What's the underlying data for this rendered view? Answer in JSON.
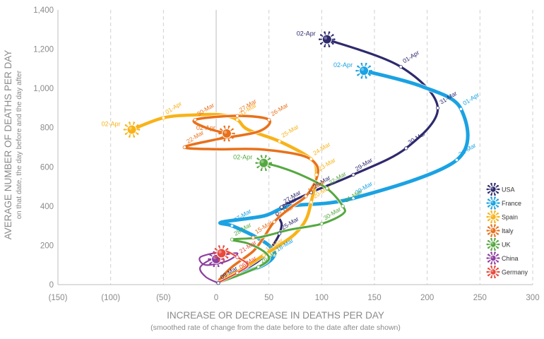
{
  "chart_data": {
    "type": "line",
    "xlabel": "INCREASE OR DECREASE IN DEATHS PER DAY",
    "xlabel_sub": "(smoothed rate of change from the date before to the date after date shown)",
    "ylabel": "AVERAGE NUMBER OF DEATHS PER DAY",
    "ylabel_sub": "on that date, the day before and the day after",
    "xlim": [
      -150,
      300
    ],
    "ylim": [
      0,
      1400
    ],
    "x_ticks": [
      -150,
      -100,
      -50,
      0,
      50,
      100,
      150,
      200,
      250,
      300
    ],
    "x_tick_labels": [
      "(150)",
      "(100)",
      "(50)",
      "0",
      "50",
      "100",
      "150",
      "200",
      "250",
      "300"
    ],
    "y_ticks": [
      0,
      200,
      400,
      600,
      800,
      1000,
      1200,
      1400
    ],
    "y_tick_labels": [
      "0",
      "200",
      "400",
      "600",
      "800",
      "1,000",
      "1,200",
      "1,400"
    ],
    "grid": "vertical dashed",
    "legend": "right",
    "series": [
      {
        "name": "USA",
        "color": "#2e2a6e",
        "width": 3.2,
        "points": [
          {
            "x": 2,
            "y": 8
          },
          {
            "x": 15,
            "y": 40
          },
          {
            "x": 28,
            "y": 80
          },
          {
            "x": 40,
            "y": 120
          },
          {
            "x": 48,
            "y": 160
          },
          {
            "x": 55,
            "y": 210
          },
          {
            "x": 60,
            "y": 260
          },
          {
            "x": 62,
            "y": 310
          },
          {
            "x": 58,
            "y": 360
          },
          {
            "x": 62,
            "y": 395
          },
          {
            "x": 90,
            "y": 470
          },
          {
            "x": 130,
            "y": 560
          },
          {
            "x": 180,
            "y": 695
          },
          {
            "x": 210,
            "y": 900
          },
          {
            "x": 175,
            "y": 1110
          },
          {
            "x": 105,
            "y": 1250
          }
        ],
        "labels": [
          {
            "text": "09-Mar",
            "x": 2,
            "y": 8
          },
          {
            "x": 60,
            "y": 260,
            "text": "25-Mar"
          },
          {
            "x": 58,
            "y": 360,
            "text": "26-Mar"
          },
          {
            "x": 62,
            "y": 395,
            "text": "27-Mar"
          },
          {
            "x": 90,
            "y": 470,
            "text": "28-Mar"
          },
          {
            "x": 130,
            "y": 560,
            "text": "29-Mar"
          },
          {
            "x": 180,
            "y": 695,
            "text": "30-Mar"
          },
          {
            "x": 210,
            "y": 900,
            "text": "31-Mar"
          },
          {
            "x": 175,
            "y": 1110,
            "text": "01-Apr"
          },
          {
            "x": 105,
            "y": 1250,
            "text": "02-Apr"
          }
        ]
      },
      {
        "name": "France",
        "color": "#1ba2e2",
        "width": 5,
        "points": [
          {
            "x": 2,
            "y": 15
          },
          {
            "x": 25,
            "y": 60
          },
          {
            "x": 45,
            "y": 100
          },
          {
            "x": 55,
            "y": 150
          },
          {
            "x": 50,
            "y": 200
          },
          {
            "x": 35,
            "y": 250
          },
          {
            "x": 15,
            "y": 300
          },
          {
            "x": 5,
            "y": 318
          },
          {
            "x": 45,
            "y": 350
          },
          {
            "x": 70,
            "y": 400
          },
          {
            "x": 130,
            "y": 440
          },
          {
            "x": 228,
            "y": 635
          },
          {
            "x": 232,
            "y": 895
          },
          {
            "x": 195,
            "y": 1010
          },
          {
            "x": 140,
            "y": 1090
          }
        ],
        "labels": [
          {
            "x": 15,
            "y": 300,
            "text": "27-Mar"
          },
          {
            "x": 130,
            "y": 440,
            "text": "30-Mar"
          },
          {
            "x": 228,
            "y": 635,
            "text": "31-Mar"
          },
          {
            "x": 232,
            "y": 895,
            "text": "01-Apr"
          },
          {
            "x": 140,
            "y": 1090,
            "text": "02-Apr"
          },
          {
            "x": 55,
            "y": 150,
            "text": "18-Mar"
          }
        ]
      },
      {
        "name": "Spain",
        "color": "#f8b31a",
        "width": 4.5,
        "points": [
          {
            "x": 3,
            "y": 20
          },
          {
            "x": 25,
            "y": 80
          },
          {
            "x": 45,
            "y": 150
          },
          {
            "x": 60,
            "y": 200
          },
          {
            "x": 75,
            "y": 260
          },
          {
            "x": 85,
            "y": 330
          },
          {
            "x": 90,
            "y": 420
          },
          {
            "x": 95,
            "y": 560
          },
          {
            "x": 90,
            "y": 640
          },
          {
            "x": 60,
            "y": 730
          },
          {
            "x": 30,
            "y": 790
          },
          {
            "x": 20,
            "y": 840
          },
          {
            "x": 5,
            "y": 865
          },
          {
            "x": -20,
            "y": 865
          },
          {
            "x": -50,
            "y": 850
          },
          {
            "x": -80,
            "y": 790
          }
        ],
        "labels": [
          {
            "x": 90,
            "y": 420,
            "text": "20-Mar"
          },
          {
            "x": 95,
            "y": 560,
            "text": "23-Mar"
          },
          {
            "x": 90,
            "y": 640,
            "text": "24-Mar"
          },
          {
            "x": 60,
            "y": 730,
            "text": "25-Mar"
          },
          {
            "x": 20,
            "y": 840,
            "text": "31-Mar"
          },
          {
            "x": -50,
            "y": 850,
            "text": "01-Apr"
          },
          {
            "x": -80,
            "y": 790,
            "text": "02-Apr"
          },
          {
            "x": 45,
            "y": 150,
            "text": "12-Mar"
          }
        ]
      },
      {
        "name": "Italy",
        "color": "#e8711b",
        "width": 3.5,
        "points": [
          {
            "x": 3,
            "y": 25
          },
          {
            "x": 15,
            "y": 90
          },
          {
            "x": 35,
            "y": 170
          },
          {
            "x": 45,
            "y": 240
          },
          {
            "x": 55,
            "y": 320
          },
          {
            "x": 70,
            "y": 390
          },
          {
            "x": 85,
            "y": 450
          },
          {
            "x": 95,
            "y": 540
          },
          {
            "x": 95,
            "y": 610
          },
          {
            "x": 80,
            "y": 660
          },
          {
            "x": 40,
            "y": 690
          },
          {
            "x": 0,
            "y": 690
          },
          {
            "x": -30,
            "y": 700
          },
          {
            "x": 0,
            "y": 740
          },
          {
            "x": 40,
            "y": 780
          },
          {
            "x": 50,
            "y": 840
          },
          {
            "x": 20,
            "y": 860
          },
          {
            "x": -20,
            "y": 840
          },
          {
            "x": -10,
            "y": 800
          },
          {
            "x": 10,
            "y": 770
          }
        ],
        "labels": [
          {
            "x": 35,
            "y": 240,
            "text": "15-Mar"
          },
          {
            "x": 55,
            "y": 320,
            "text": "17-Mar"
          },
          {
            "x": 85,
            "y": 450,
            "text": "18-Mar"
          },
          {
            "x": -30,
            "y": 700,
            "text": "22-Mar"
          },
          {
            "x": 50,
            "y": 840,
            "text": "26-Mar"
          },
          {
            "x": 20,
            "y": 860,
            "text": "27-Mar"
          },
          {
            "x": -20,
            "y": 840,
            "text": "30-Mar"
          },
          {
            "x": 10,
            "y": 770,
            "text": "02-Apr"
          }
        ]
      },
      {
        "name": "UK",
        "color": "#55a840",
        "width": 3,
        "points": [
          {
            "x": 2,
            "y": 10
          },
          {
            "x": 20,
            "y": 45
          },
          {
            "x": 40,
            "y": 90
          },
          {
            "x": 50,
            "y": 130
          },
          {
            "x": 45,
            "y": 170
          },
          {
            "x": 30,
            "y": 210
          },
          {
            "x": 15,
            "y": 230
          },
          {
            "x": 40,
            "y": 240
          },
          {
            "x": 70,
            "y": 280
          },
          {
            "x": 100,
            "y": 310
          },
          {
            "x": 120,
            "y": 360
          },
          {
            "x": 120,
            "y": 400
          },
          {
            "x": 105,
            "y": 490
          },
          {
            "x": 80,
            "y": 560
          },
          {
            "x": 60,
            "y": 600
          },
          {
            "x": 45,
            "y": 620
          }
        ],
        "labels": [
          {
            "x": 15,
            "y": 230,
            "text": "28-Mar"
          },
          {
            "x": 100,
            "y": 310,
            "text": "30-Mar"
          },
          {
            "x": 120,
            "y": 400,
            "text": "31-Mar"
          },
          {
            "x": 105,
            "y": 490,
            "text": "22-Mar"
          },
          {
            "x": 45,
            "y": 620,
            "text": "02-Apr"
          },
          {
            "x": 40,
            "y": 90,
            "text": "26-Mar"
          }
        ]
      },
      {
        "name": "China",
        "color": "#8d3fa0",
        "width": 2.2,
        "points": [
          {
            "x": 2,
            "y": 8
          },
          {
            "x": -10,
            "y": 40
          },
          {
            "x": -15,
            "y": 90
          },
          {
            "x": 0,
            "y": 140
          },
          {
            "x": 20,
            "y": 160
          },
          {
            "x": 10,
            "y": 120
          },
          {
            "x": -10,
            "y": 100
          },
          {
            "x": -15,
            "y": 140
          },
          {
            "x": 5,
            "y": 165
          },
          {
            "x": 0,
            "y": 130
          }
        ],
        "labels": []
      },
      {
        "name": "Germany",
        "color": "#e84a3c",
        "width": 2.2,
        "points": [
          {
            "x": 2,
            "y": 10
          },
          {
            "x": 20,
            "y": 60
          },
          {
            "x": 30,
            "y": 100
          },
          {
            "x": 20,
            "y": 140
          },
          {
            "x": 10,
            "y": 170
          },
          {
            "x": 5,
            "y": 160
          }
        ],
        "labels": [
          {
            "x": 20,
            "y": 140,
            "text": "21-Mar"
          },
          {
            "x": 20,
            "y": 60,
            "text": "06-Mar"
          }
        ]
      }
    ]
  }
}
